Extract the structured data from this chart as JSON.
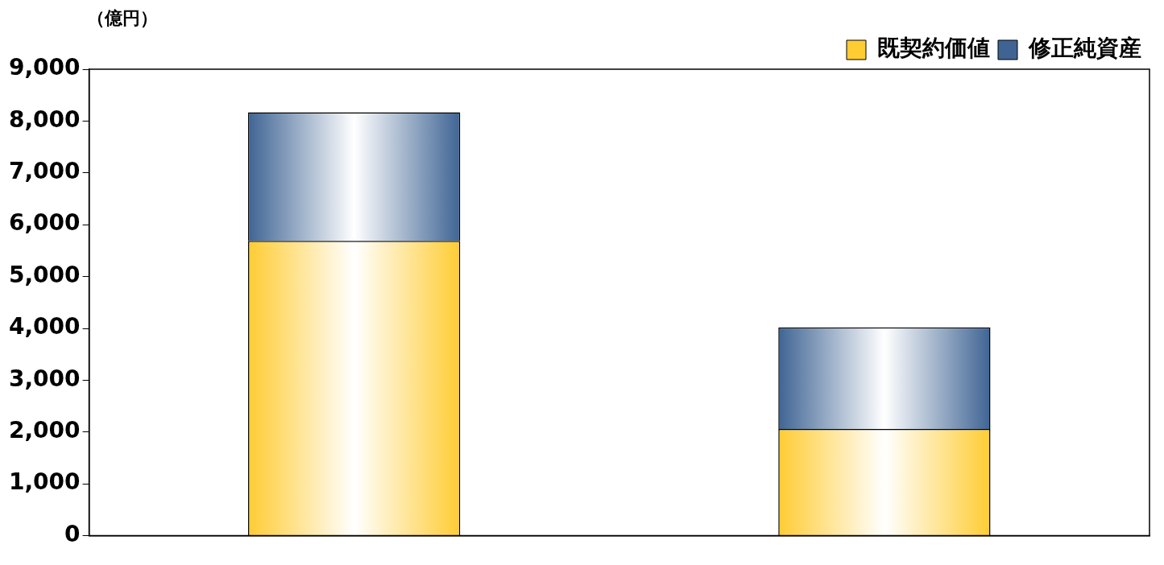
{
  "chart_data": {
    "type": "bar",
    "ylabel": "（億円）",
    "categories": [
      null,
      null
    ],
    "stacked": true,
    "series": [
      {
        "name": "既契約価値",
        "color": "#ffcc33",
        "values": [
          5690,
          2060
        ]
      },
      {
        "name": "修正純資産",
        "color": "#3f6494",
        "values": [
          2480,
          1960
        ]
      }
    ],
    "ylim": [
      0,
      9000
    ],
    "yticks": [
      0,
      {
        "value": 1000,
        "label": "1,000"
      },
      {
        "value": 2000,
        "label": "2,000"
      },
      {
        "value": 3000,
        "label": "3,000"
      },
      {
        "value": 4000,
        "label": "4,000"
      },
      {
        "value": 5000,
        "label": "5,000"
      },
      {
        "value": 6000,
        "label": "6,000"
      },
      {
        "value": 7000,
        "label": "7,000"
      },
      {
        "value": 8000,
        "label": "8,000"
      },
      {
        "value": 9000,
        "label": "9,000"
      }
    ],
    "grid": false,
    "legend": "top right"
  }
}
